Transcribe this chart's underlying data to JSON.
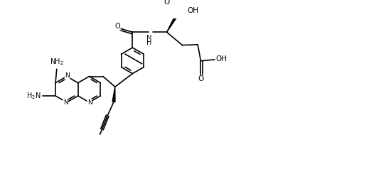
{
  "bg": "#ffffff",
  "lc": "#000000",
  "lw": 1.2,
  "fw": 5.5,
  "fh": 2.38,
  "dpi": 100,
  "xlim": [
    0,
    14.0
  ],
  "ylim": [
    0,
    6.0
  ],
  "note": "All atom coords in data units. Rings use r_ring radius."
}
